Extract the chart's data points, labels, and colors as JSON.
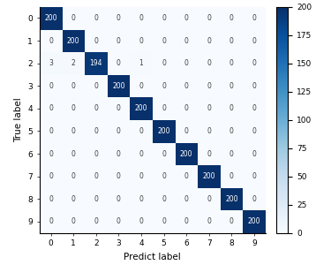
{
  "matrix": [
    [
      200,
      0,
      0,
      0,
      0,
      0,
      0,
      0,
      0,
      0
    ],
    [
      0,
      200,
      0,
      0,
      0,
      0,
      0,
      0,
      0,
      0
    ],
    [
      3,
      2,
      194,
      0,
      1,
      0,
      0,
      0,
      0,
      0
    ],
    [
      0,
      0,
      0,
      200,
      0,
      0,
      0,
      0,
      0,
      0
    ],
    [
      0,
      0,
      0,
      0,
      200,
      0,
      0,
      0,
      0,
      0
    ],
    [
      0,
      0,
      0,
      0,
      0,
      200,
      0,
      0,
      0,
      0
    ],
    [
      0,
      0,
      0,
      0,
      0,
      0,
      200,
      0,
      0,
      0
    ],
    [
      0,
      0,
      0,
      0,
      0,
      0,
      0,
      200,
      0,
      0
    ],
    [
      0,
      0,
      0,
      0,
      0,
      0,
      0,
      0,
      200,
      0
    ],
    [
      0,
      0,
      0,
      0,
      0,
      0,
      0,
      0,
      0,
      200
    ]
  ],
  "xlabel": "Predict label",
  "ylabel": "True label",
  "tick_labels": [
    "0",
    "1",
    "2",
    "3",
    "4",
    "5",
    "6",
    "7",
    "8",
    "9"
  ],
  "colormap": "Blues",
  "vmin": 0,
  "vmax": 200,
  "colorbar_ticks": [
    0,
    25,
    50,
    75,
    100,
    125,
    150,
    175,
    200
  ],
  "text_color_threshold": 100,
  "high_text_color": "#ffffff",
  "low_text_color": "#404040",
  "fontsize_cell": 5.5,
  "fontsize_label": 7.5,
  "fontsize_tick": 6.5,
  "fig_width": 3.58,
  "fig_height": 3.0,
  "dpi": 100
}
